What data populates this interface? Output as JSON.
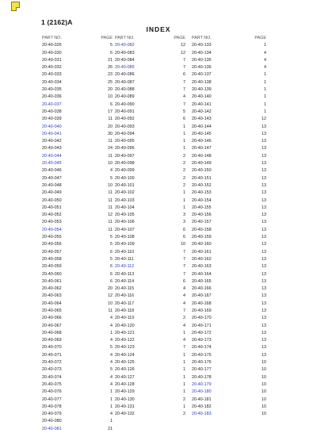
{
  "doc_id": "1 (2162)A",
  "title": "INDEX",
  "headers": {
    "part": "PART NO.",
    "page": "PAGE"
  },
  "columns": [
    {
      "rows": [
        {
          "part": "20-40-026",
          "page": "5",
          "link": false
        },
        {
          "part": "20-40-030",
          "page": "6",
          "link": false
        },
        {
          "part": "20-40-031",
          "page": "21",
          "link": false
        },
        {
          "part": "20-40-032",
          "page": "26",
          "link": false
        },
        {
          "part": "20-40-033",
          "page": "23",
          "link": false
        },
        {
          "part": "20-40-034",
          "page": "25",
          "link": false
        },
        {
          "part": "20-40-035",
          "page": "20",
          "link": false
        },
        {
          "part": "20-40-036",
          "page": "10",
          "link": false
        },
        {
          "part": "20-40-037",
          "page": "6",
          "link": true
        },
        {
          "part": "20-40-038",
          "page": "17",
          "link": false
        },
        {
          "part": "20-40-039",
          "page": "11",
          "link": false
        },
        {
          "part": "20-40-040",
          "page": "20",
          "link": true
        },
        {
          "part": "20-40-041",
          "page": "30",
          "link": true
        },
        {
          "part": "20-40-042",
          "page": "11",
          "link": false
        },
        {
          "part": "20-40-043",
          "page": "24",
          "link": false
        },
        {
          "part": "20-40-044",
          "page": "11",
          "link": true
        },
        {
          "part": "20-40-045",
          "page": "10",
          "link": true
        },
        {
          "part": "20-40-046",
          "page": "4",
          "link": false
        },
        {
          "part": "20-40-047",
          "page": "5",
          "link": false
        },
        {
          "part": "20-40-048",
          "page": "10",
          "link": false
        },
        {
          "part": "20-40-049",
          "page": "11",
          "link": false
        },
        {
          "part": "20-40-050",
          "page": "11",
          "link": false
        },
        {
          "part": "20-40-051",
          "page": "11",
          "link": false
        },
        {
          "part": "20-40-052",
          "page": "12",
          "link": false
        },
        {
          "part": "20-40-053",
          "page": "11",
          "link": false
        },
        {
          "part": "20-40-054",
          "page": "11",
          "link": true
        },
        {
          "part": "20-40-055",
          "page": "5",
          "link": false
        },
        {
          "part": "20-40-056",
          "page": "5",
          "link": false
        },
        {
          "part": "20-40-057",
          "page": "6",
          "link": false
        },
        {
          "part": "20-40-058",
          "page": "5",
          "link": false
        },
        {
          "part": "20-40-059",
          "page": "6",
          "link": false
        },
        {
          "part": "20-40-060",
          "page": "6",
          "link": false
        },
        {
          "part": "20-40-061",
          "page": "6",
          "link": false
        },
        {
          "part": "20-40-062",
          "page": "20",
          "link": false
        },
        {
          "part": "20-40-063",
          "page": "12",
          "link": false
        },
        {
          "part": "20-40-064",
          "page": "10",
          "link": false
        },
        {
          "part": "20-40-065",
          "page": "11",
          "link": false
        },
        {
          "part": "20-40-066",
          "page": "4",
          "link": false
        },
        {
          "part": "20-40-067",
          "page": "4",
          "link": false
        },
        {
          "part": "20-40-068",
          "page": "1",
          "link": false
        },
        {
          "part": "20-40-069",
          "page": "4",
          "link": false
        },
        {
          "part": "20-40-070",
          "page": "5",
          "link": false
        },
        {
          "part": "20-40-071",
          "page": "4",
          "link": false
        },
        {
          "part": "20-40-072",
          "page": "4",
          "link": false
        },
        {
          "part": "20-40-073",
          "page": "5",
          "link": false
        },
        {
          "part": "20-40-074",
          "page": "4",
          "link": false
        },
        {
          "part": "20-40-075",
          "page": "4",
          "link": false
        },
        {
          "part": "20-40-076",
          "page": "1",
          "link": false
        },
        {
          "part": "20-40-077",
          "page": "1",
          "link": false
        },
        {
          "part": "20-40-078",
          "page": "1",
          "link": false
        },
        {
          "part": "20-40-079",
          "page": "4",
          "link": false
        },
        {
          "part": "20-40-080",
          "page": "1",
          "link": false
        },
        {
          "part": "20-40-081",
          "page": "21",
          "link": true
        }
      ]
    },
    {
      "rows": [
        {
          "part": "20-40-082",
          "page": "12",
          "link": true
        },
        {
          "part": "20-40-083",
          "page": "12",
          "link": false
        },
        {
          "part": "20-40-084",
          "page": "7",
          "link": false
        },
        {
          "part": "20-40-085",
          "page": "7",
          "link": true
        },
        {
          "part": "20-40-086",
          "page": "6",
          "link": false
        },
        {
          "part": "20-40-087",
          "page": "7",
          "link": false
        },
        {
          "part": "20-40-088",
          "page": "7",
          "link": false
        },
        {
          "part": "20-40-089",
          "page": "4",
          "link": false
        },
        {
          "part": "20-40-090",
          "page": "7",
          "link": false
        },
        {
          "part": "20-40-091",
          "page": "5",
          "link": false
        },
        {
          "part": "20-40-092",
          "page": "6",
          "link": false
        },
        {
          "part": "20-40-093",
          "page": "1",
          "link": false
        },
        {
          "part": "20-40-094",
          "page": "1",
          "link": false
        },
        {
          "part": "20-40-095",
          "page": "1",
          "link": false
        },
        {
          "part": "20-40-096",
          "page": "1",
          "link": false
        },
        {
          "part": "20-40-097",
          "page": "2",
          "link": false
        },
        {
          "part": "20-40-098",
          "page": "2",
          "link": false
        },
        {
          "part": "20-40-099",
          "page": "2",
          "link": false
        },
        {
          "part": "20-40-100",
          "page": "2",
          "link": false
        },
        {
          "part": "20-40-101",
          "page": "2",
          "link": false
        },
        {
          "part": "20-40-102",
          "page": "1",
          "link": false
        },
        {
          "part": "20-40-103",
          "page": "1",
          "link": false
        },
        {
          "part": "20-40-104",
          "page": "1",
          "link": false
        },
        {
          "part": "20-40-105",
          "page": "3",
          "link": false
        },
        {
          "part": "20-40-106",
          "page": "3",
          "link": false
        },
        {
          "part": "20-40-107",
          "page": "6",
          "link": false
        },
        {
          "part": "20-40-108",
          "page": "6",
          "link": false
        },
        {
          "part": "20-40-109",
          "page": "10",
          "link": false
        },
        {
          "part": "20-40-110",
          "page": "7",
          "link": false
        },
        {
          "part": "20-40-111",
          "page": "7",
          "link": false
        },
        {
          "part": "20-40-112",
          "page": "7",
          "link": true
        },
        {
          "part": "20-40-113",
          "page": "7",
          "link": false
        },
        {
          "part": "20-40-114",
          "page": "6",
          "link": false
        },
        {
          "part": "20-40-115",
          "page": "4",
          "link": false
        },
        {
          "part": "20-40-116",
          "page": "4",
          "link": false
        },
        {
          "part": "20-40-117",
          "page": "4",
          "link": false
        },
        {
          "part": "20-40-118",
          "page": "7",
          "link": false
        },
        {
          "part": "20-40-119",
          "page": "2",
          "link": false
        },
        {
          "part": "20-40-120",
          "page": "4",
          "link": false
        },
        {
          "part": "20-40-121",
          "page": "1",
          "link": false
        },
        {
          "part": "20-40-122",
          "page": "4",
          "link": false
        },
        {
          "part": "20-40-123",
          "page": "7",
          "link": false
        },
        {
          "part": "20-40-124",
          "page": "1",
          "link": false
        },
        {
          "part": "20-40-125",
          "page": "1",
          "link": false
        },
        {
          "part": "20-40-126",
          "page": "1",
          "link": false
        },
        {
          "part": "20-40-127",
          "page": "1",
          "link": false
        },
        {
          "part": "20-40-128",
          "page": "1",
          "link": false
        },
        {
          "part": "20-40-129",
          "page": "1",
          "link": false
        },
        {
          "part": "20-40-130",
          "page": "2",
          "link": false
        },
        {
          "part": "20-40-131",
          "page": "1",
          "link": false
        },
        {
          "part": "20-40-132",
          "page": "2",
          "link": false
        }
      ]
    },
    {
      "rows": [
        {
          "part": "20-40-133",
          "page": "1",
          "link": false
        },
        {
          "part": "20-40-134",
          "page": "4",
          "link": false
        },
        {
          "part": "20-40-135",
          "page": "4",
          "link": false
        },
        {
          "part": "20-40-136",
          "page": "4",
          "link": false
        },
        {
          "part": "20-40-137",
          "page": "1",
          "link": false
        },
        {
          "part": "20-40-138",
          "page": "1",
          "link": false
        },
        {
          "part": "20-40-139",
          "page": "1",
          "link": false
        },
        {
          "part": "20-40-140",
          "page": "1",
          "link": false
        },
        {
          "part": "20-40-141",
          "page": "1",
          "link": false
        },
        {
          "part": "20-40-142",
          "page": "1",
          "link": false
        },
        {
          "part": "20-40-143",
          "page": "12",
          "link": false
        },
        {
          "part": "20-40-144",
          "page": "13",
          "link": false
        },
        {
          "part": "20-40-145",
          "page": "13",
          "link": false
        },
        {
          "part": "20-40-146",
          "page": "13",
          "link": false
        },
        {
          "part": "20-40-147",
          "page": "13",
          "link": false
        },
        {
          "part": "20-40-148",
          "page": "13",
          "link": false
        },
        {
          "part": "20-40-149",
          "page": "13",
          "link": false
        },
        {
          "part": "20-40-150",
          "page": "13",
          "link": false
        },
        {
          "part": "20-40-151",
          "page": "13",
          "link": false
        },
        {
          "part": "20-40-152",
          "page": "13",
          "link": false
        },
        {
          "part": "20-40-153",
          "page": "13",
          "link": false
        },
        {
          "part": "20-40-154",
          "page": "13",
          "link": false
        },
        {
          "part": "20-40-155",
          "page": "13",
          "link": false
        },
        {
          "part": "20-40-156",
          "page": "13",
          "link": false
        },
        {
          "part": "20-40-157",
          "page": "13",
          "link": false
        },
        {
          "part": "20-40-158",
          "page": "13",
          "link": false
        },
        {
          "part": "20-40-159",
          "page": "13",
          "link": false
        },
        {
          "part": "20-40-160",
          "page": "13",
          "link": false
        },
        {
          "part": "20-40-161",
          "page": "13",
          "link": false
        },
        {
          "part": "20-40-162",
          "page": "13",
          "link": false
        },
        {
          "part": "20-40-163",
          "page": "13",
          "link": false
        },
        {
          "part": "20-40-164",
          "page": "13",
          "link": false
        },
        {
          "part": "20-40-165",
          "page": "13",
          "link": false
        },
        {
          "part": "20-40-166",
          "page": "13",
          "link": false
        },
        {
          "part": "20-40-167",
          "page": "13",
          "link": false
        },
        {
          "part": "20-40-168",
          "page": "13",
          "link": false
        },
        {
          "part": "20-40-169",
          "page": "13",
          "link": false
        },
        {
          "part": "20-40-170",
          "page": "13",
          "link": false
        },
        {
          "part": "20-40-171",
          "page": "13",
          "link": false
        },
        {
          "part": "20-40-172",
          "page": "13",
          "link": false
        },
        {
          "part": "20-40-173",
          "page": "13",
          "link": false
        },
        {
          "part": "20-40-174",
          "page": "13",
          "link": false
        },
        {
          "part": "20-40-175",
          "page": "13",
          "link": false
        },
        {
          "part": "20-40-176",
          "page": "10",
          "link": false
        },
        {
          "part": "20-40-177",
          "page": "10",
          "link": false
        },
        {
          "part": "20-40-178",
          "page": "10",
          "link": false
        },
        {
          "part": "20-40-179",
          "page": "10",
          "link": true
        },
        {
          "part": "20-40-180",
          "page": "10",
          "link": true
        },
        {
          "part": "20-40-181",
          "page": "10",
          "link": false
        },
        {
          "part": "20-40-182",
          "page": "10",
          "link": false
        },
        {
          "part": "20-40-183",
          "page": "10",
          "link": true
        }
      ]
    }
  ]
}
